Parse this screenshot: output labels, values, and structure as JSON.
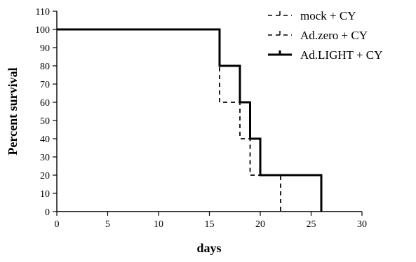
{
  "chart_data": {
    "type": "line",
    "subtype": "kaplan-meier-step",
    "title": "",
    "xlabel": "days",
    "ylabel": "Percent survival",
    "xlim": [
      0,
      30
    ],
    "ylim": [
      0,
      110
    ],
    "xticks": [
      0,
      5,
      10,
      15,
      20,
      25,
      30
    ],
    "yticks": [
      0,
      10,
      20,
      30,
      40,
      50,
      60,
      70,
      80,
      90,
      100,
      110
    ],
    "grid": false,
    "legend_position": "top-right",
    "series": [
      {
        "name": "mock + CY",
        "line_style": "dashed",
        "color": "#000000",
        "x": [
          0,
          16,
          18,
          19,
          22
        ],
        "y": [
          100,
          60,
          40,
          20,
          0
        ]
      },
      {
        "name": "Ad.zero + CY",
        "line_style": "dashed",
        "color": "#000000",
        "x": [
          0,
          16,
          18,
          19,
          22
        ],
        "y": [
          100,
          60,
          40,
          20,
          0
        ]
      },
      {
        "name": "Ad.LIGHT + CY",
        "line_style": "solid-thick",
        "color": "#000000",
        "x": [
          0,
          16,
          18,
          19,
          20,
          26
        ],
        "y": [
          100,
          80,
          60,
          40,
          20,
          0
        ]
      }
    ]
  }
}
